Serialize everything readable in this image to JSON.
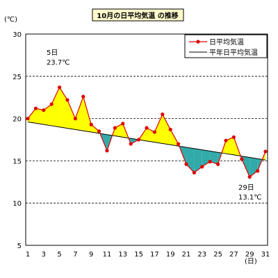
{
  "chart_data": {
    "type": "line",
    "title": "10月の日平均気温 の推移",
    "y_unit_label": "(℃)",
    "x_unit_label": "(日)",
    "ylim": [
      5,
      30
    ],
    "yticks": [
      5,
      10,
      15,
      20,
      25,
      30
    ],
    "xlim": [
      1,
      31
    ],
    "xticks": [
      1,
      3,
      5,
      7,
      9,
      11,
      13,
      15,
      17,
      19,
      21,
      23,
      25,
      27,
      29,
      31
    ],
    "grid": "horizontal dashed",
    "legend_position": "top-right",
    "x": [
      1,
      2,
      3,
      4,
      5,
      6,
      7,
      8,
      9,
      10,
      11,
      12,
      13,
      14,
      15,
      16,
      17,
      18,
      19,
      20,
      21,
      22,
      23,
      24,
      25,
      26,
      27,
      28,
      29,
      30,
      31
    ],
    "series": [
      {
        "name": "日平均気温",
        "color": "#dd0000",
        "marker": "circle",
        "values": [
          20.0,
          21.2,
          21.0,
          21.7,
          23.7,
          22.2,
          20.0,
          22.6,
          19.3,
          18.5,
          16.2,
          18.9,
          19.4,
          17.0,
          17.5,
          18.9,
          18.4,
          20.5,
          18.7,
          17.0,
          14.6,
          13.6,
          14.3,
          14.9,
          14.6,
          17.4,
          17.8,
          15.2,
          13.1,
          13.8,
          16.1
        ]
      },
      {
        "name": "平年日平均気温",
        "color": "#000000",
        "marker": "none",
        "values": [
          19.6,
          19.45,
          19.3,
          19.15,
          19.0,
          18.85,
          18.7,
          18.55,
          18.4,
          18.25,
          18.1,
          17.95,
          17.8,
          17.65,
          17.5,
          17.35,
          17.2,
          17.05,
          16.9,
          16.75,
          16.6,
          16.45,
          16.3,
          16.15,
          16.0,
          15.85,
          15.7,
          15.55,
          15.4,
          15.25,
          15.1
        ]
      }
    ],
    "fill_above_color": "#ffff00",
    "fill_below_color": "#33aaaa",
    "annotations": [
      {
        "day_label": "5日",
        "value_label": "23.7℃"
      },
      {
        "day_label": "29日",
        "value_label": "13.1℃"
      }
    ]
  }
}
